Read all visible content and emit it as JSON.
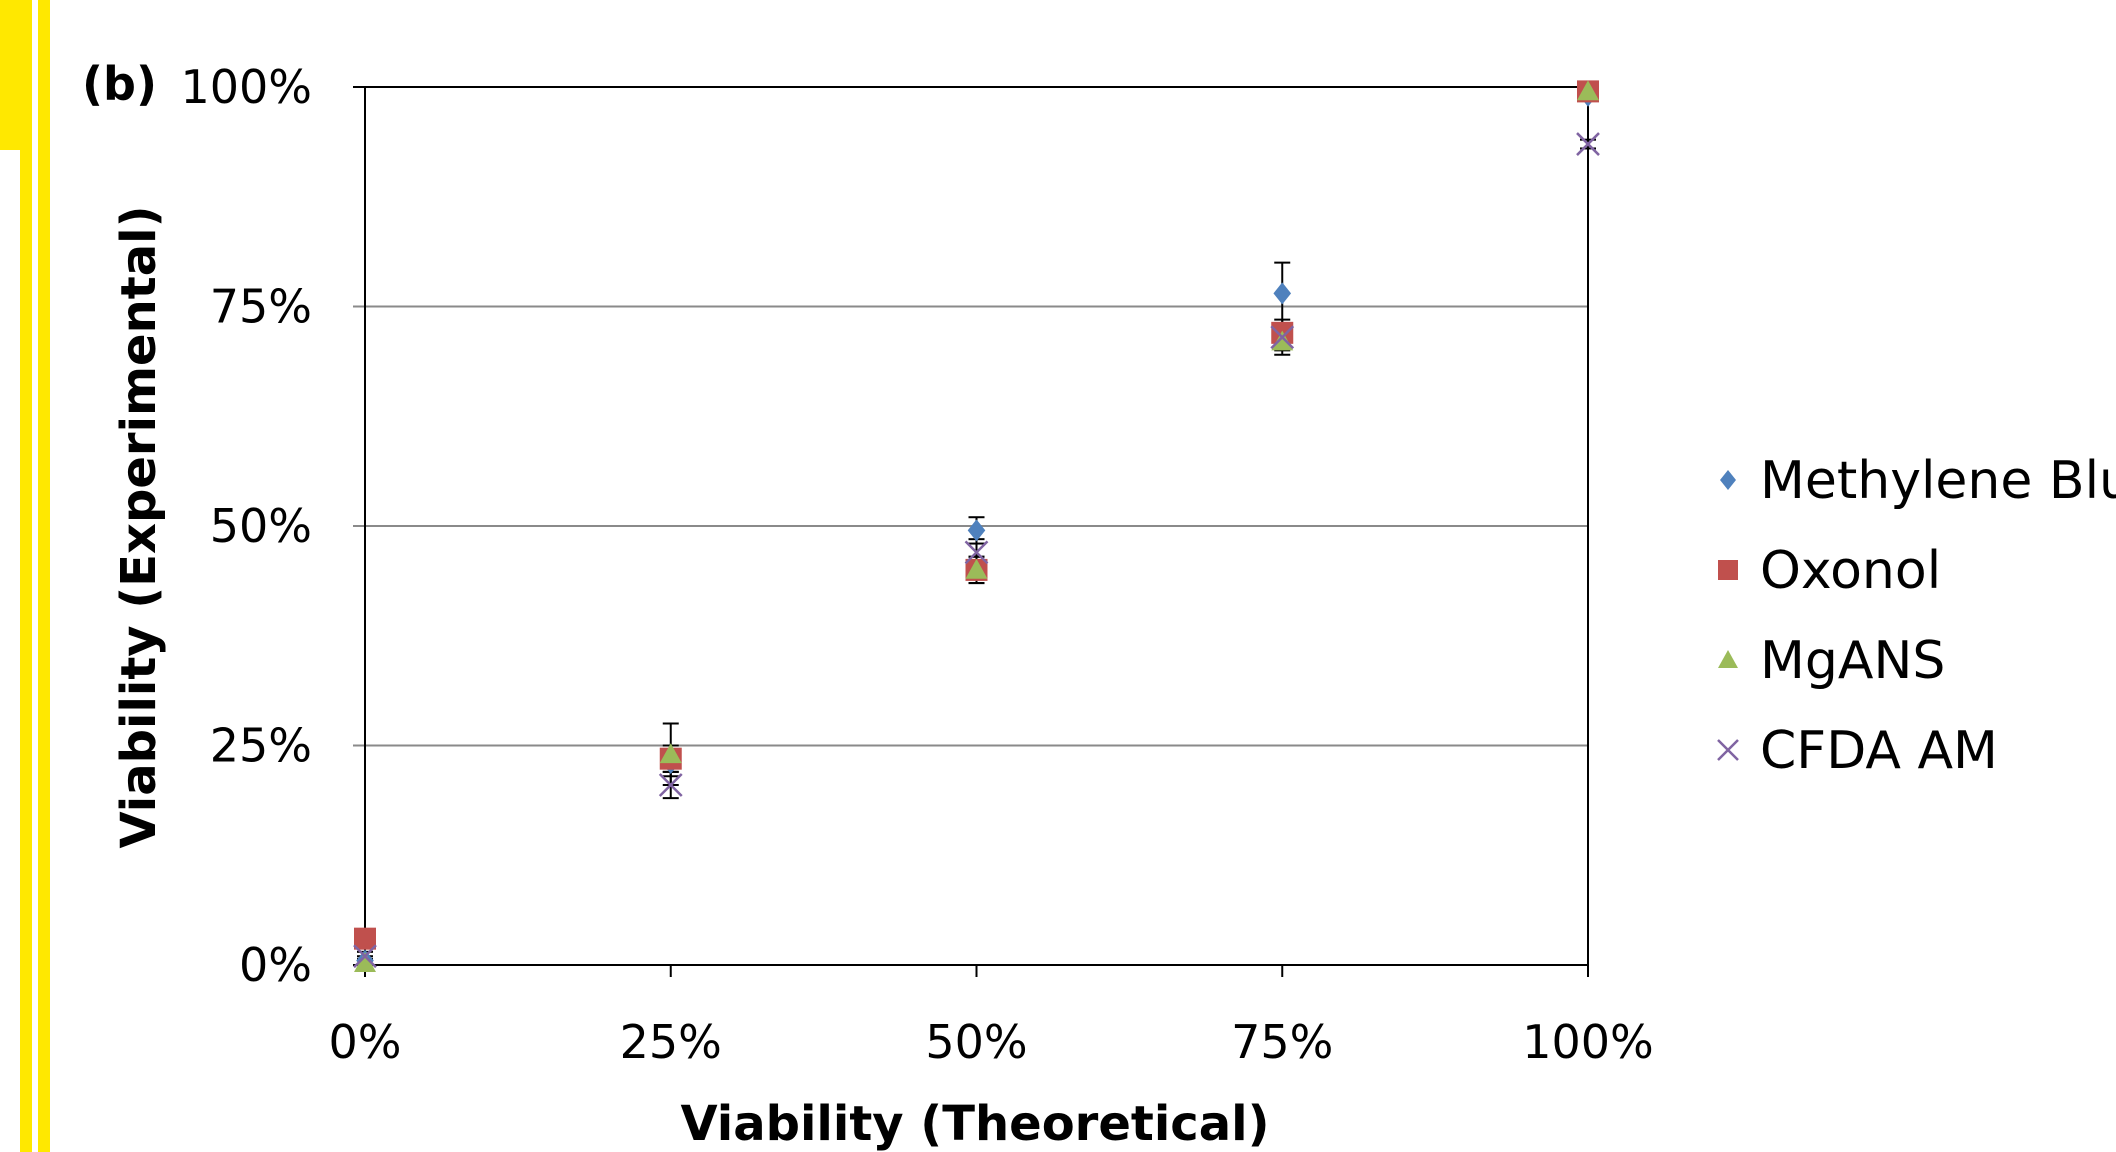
{
  "panel_label": "(b)",
  "chart_data": {
    "type": "scatter",
    "title": "",
    "xlabel": "Viability (Theoretical)",
    "ylabel": "Viability (Experimental)",
    "xlim": [
      0,
      100
    ],
    "ylim": [
      0,
      100
    ],
    "x_ticks": [
      "0%",
      "25%",
      "50%",
      "75%",
      "100%"
    ],
    "y_ticks": [
      "0%",
      "25%",
      "50%",
      "75%",
      "100%"
    ],
    "tick_values": [
      0,
      25,
      50,
      75,
      100
    ],
    "grid": "horizontal",
    "legend_position": "right",
    "series": [
      {
        "name": "Methylene Blue",
        "marker": "diamond",
        "color": "#4F81BD",
        "points": [
          {
            "x": 0,
            "y": 0.5,
            "err": 0.5
          },
          {
            "x": 25,
            "y": 23,
            "err": 1.5
          },
          {
            "x": 50,
            "y": 49.5,
            "err": 1.5
          },
          {
            "x": 75,
            "y": 76.5,
            "err": 3.5
          },
          {
            "x": 100,
            "y": 99,
            "err": 0.5
          }
        ]
      },
      {
        "name": "Oxonol",
        "marker": "square",
        "color": "#C0504D",
        "points": [
          {
            "x": 0,
            "y": 3,
            "err": 0.5
          },
          {
            "x": 25,
            "y": 23.5,
            "err": 1.5
          },
          {
            "x": 50,
            "y": 45,
            "err": 1.5
          },
          {
            "x": 75,
            "y": 72,
            "err": 1.5
          },
          {
            "x": 100,
            "y": 99.5,
            "err": 0.5
          }
        ]
      },
      {
        "name": "MgANS",
        "marker": "triangle",
        "color": "#9BBB59",
        "points": [
          {
            "x": 0,
            "y": 0.2,
            "err": 0.5
          },
          {
            "x": 25,
            "y": 24,
            "err": 3.5
          },
          {
            "x": 50,
            "y": 45,
            "err": 1.5
          },
          {
            "x": 75,
            "y": 71,
            "err": 1.5
          },
          {
            "x": 100,
            "y": 99.5,
            "err": 0.5
          }
        ]
      },
      {
        "name": "CFDA AM",
        "marker": "cross",
        "color": "#8064A2",
        "points": [
          {
            "x": 0,
            "y": 1,
            "err": 0.5
          },
          {
            "x": 25,
            "y": 20.5,
            "err": 1.5
          },
          {
            "x": 50,
            "y": 47,
            "err": 1.5
          },
          {
            "x": 75,
            "y": 71.5,
            "err": 1.5
          },
          {
            "x": 100,
            "y": 93.5,
            "err": 0.5
          }
        ]
      }
    ]
  }
}
